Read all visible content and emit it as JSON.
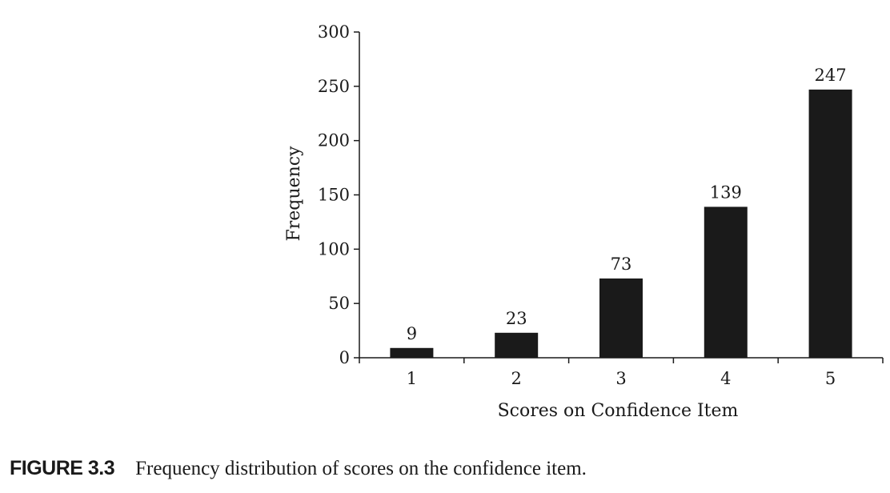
{
  "chart_data": {
    "type": "bar",
    "categories": [
      "1",
      "2",
      "3",
      "4",
      "5"
    ],
    "values": [
      9,
      23,
      73,
      139,
      247
    ],
    "data_labels": [
      "9",
      "23",
      "73",
      "139",
      "247"
    ],
    "xlabel": "Scores on Confidence Item",
    "ylabel": "Frequency",
    "ylim": [
      0,
      300
    ],
    "yticks": [
      0,
      50,
      100,
      150,
      200,
      250,
      300
    ],
    "grid": false,
    "bar_color": "#1a1a1a"
  },
  "caption": {
    "label": "FIGURE 3.3",
    "text": "Frequency distribution of scores on the confidence item."
  }
}
